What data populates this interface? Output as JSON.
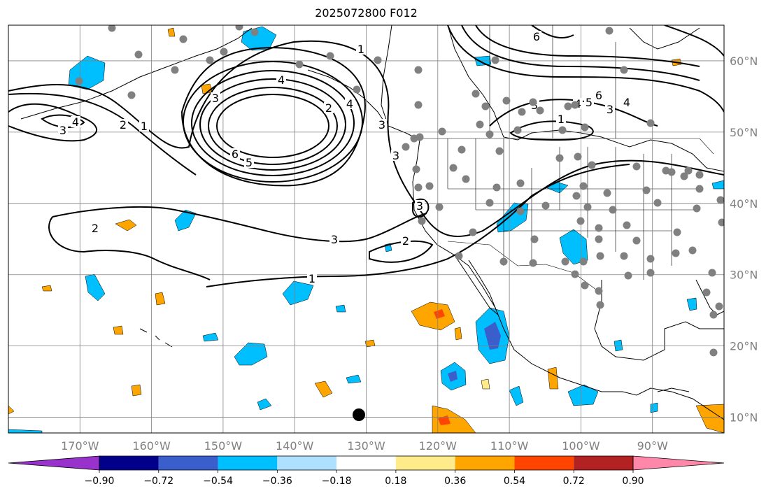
{
  "title": "2025072800 F012",
  "map": {
    "lon_range": [
      -180,
      -80
    ],
    "lat_range": [
      7.8,
      65
    ],
    "lon_labels": [
      "170°W",
      "160°W",
      "150°W",
      "140°W",
      "130°W",
      "120°W",
      "110°W",
      "100°W",
      "90°W"
    ],
    "lat_labels": [
      "10°N",
      "20°N",
      "30°N",
      "40°N",
      "50°N",
      "60°N"
    ],
    "contour_labels": [
      "4",
      "3",
      "2",
      "1",
      "4",
      "3",
      "6",
      "5",
      "2",
      "4",
      "3",
      "1",
      "6",
      "5",
      "4",
      "3",
      "2",
      "3",
      "2",
      "3",
      "1",
      "3",
      "6",
      "5",
      "4",
      "3",
      "1"
    ],
    "colors": {
      "contour": "#000000",
      "station": "#808080",
      "grid": "#808080",
      "pos_low": "#FFEB8A",
      "pos_mid": "#FFA500",
      "pos_high": "#FF4500",
      "neg_low": "#ADE1FF",
      "neg_mid": "#00BFFF",
      "neg_high": "#3A5FCD"
    }
  },
  "colorbar": {
    "labels": [
      "−0.90",
      "−0.72",
      "−0.54",
      "−0.36",
      "−0.18",
      "0.18",
      "0.36",
      "0.54",
      "0.72",
      "0.90"
    ],
    "colors": [
      "#9932CC",
      "#00008B",
      "#3A5FCD",
      "#00BFFF",
      "#ADE1FF",
      "#FFFFFF",
      "#FFEB8A",
      "#FFA500",
      "#FF4500",
      "#B22222",
      "#FF88AA"
    ]
  }
}
